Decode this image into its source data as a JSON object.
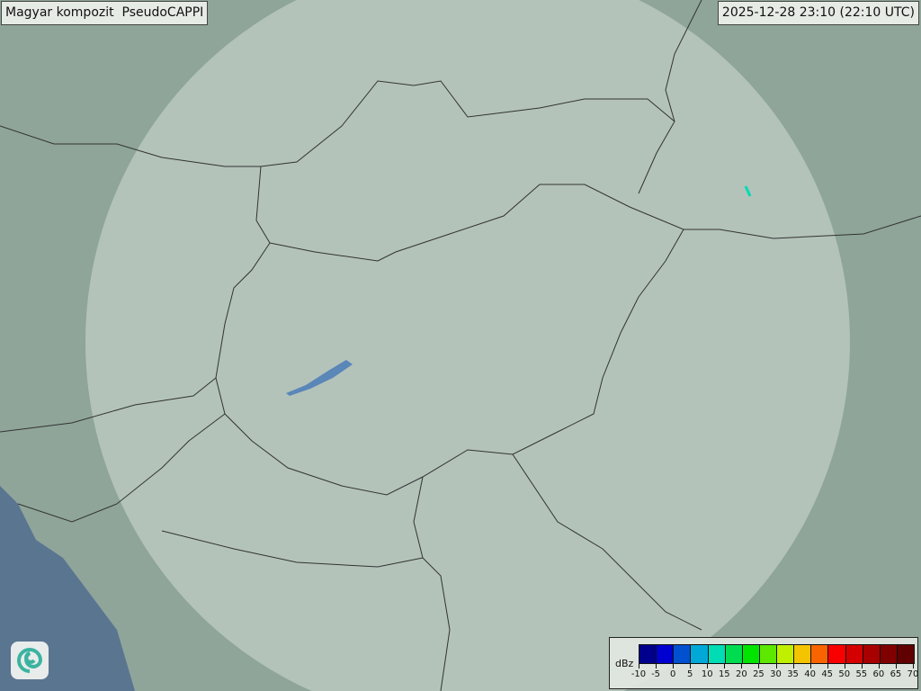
{
  "title": "Magyar kompozit  PseudoCAPPI",
  "timestamp": "2025-12-28 23:10 (22:10 UTC)",
  "legend": {
    "unit": "dBz",
    "ticks": [
      "-10",
      "-5",
      "0",
      "5",
      "10",
      "15",
      "20",
      "25",
      "30",
      "35",
      "40",
      "45",
      "50",
      "55",
      "60",
      "65",
      "70"
    ],
    "colors": [
      "#00008c",
      "#0000d0",
      "#0050d0",
      "#00a8d8",
      "#00dcb4",
      "#00dc50",
      "#00e400",
      "#5ce800",
      "#c0f000",
      "#f4c400",
      "#f86400",
      "#f80000",
      "#d40000",
      "#a80000",
      "#800000",
      "#600000"
    ]
  },
  "map": {
    "land_color": "#8fa59a",
    "coverage_color": "#dfe8e2",
    "sea_color": "#5a7590",
    "border_color": "#333333",
    "lake_color": "#5a86b8"
  }
}
